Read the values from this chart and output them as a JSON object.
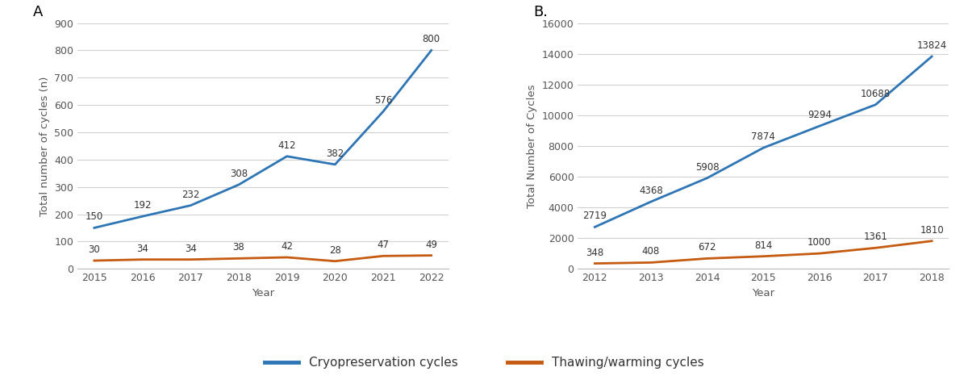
{
  "A": {
    "years": [
      2015,
      2016,
      2017,
      2018,
      2019,
      2020,
      2021,
      2022
    ],
    "cryo": [
      150,
      192,
      232,
      308,
      412,
      382,
      576,
      800
    ],
    "thaw": [
      30,
      34,
      34,
      38,
      42,
      28,
      47,
      49
    ],
    "ylabel": "Total number of cycles (n)",
    "xlabel": "Year",
    "title": "A",
    "ylim": [
      0,
      900
    ],
    "yticks": [
      0,
      100,
      200,
      300,
      400,
      500,
      600,
      700,
      800,
      900
    ]
  },
  "B": {
    "years": [
      2012,
      2013,
      2014,
      2015,
      2016,
      2017,
      2018
    ],
    "cryo": [
      2719,
      4368,
      5908,
      7874,
      9294,
      10688,
      13824
    ],
    "thaw": [
      348,
      408,
      672,
      814,
      1000,
      1361,
      1810
    ],
    "ylabel": "Total Number of Cycles",
    "xlabel": "Year",
    "title": "B.",
    "ylim": [
      0,
      16000
    ],
    "yticks": [
      0,
      2000,
      4000,
      6000,
      8000,
      10000,
      12000,
      14000,
      16000
    ]
  },
  "cryo_color": "#2E75B6",
  "thaw_color": "#C55A11",
  "line_width": 2.0,
  "label_fontsize": 8.5,
  "axis_fontsize": 9.5,
  "tick_fontsize": 9,
  "title_fontsize": 13,
  "legend_label_cryo": "Cryopreservation cycles",
  "legend_label_thaw": "Thawing/warming cycles",
  "bg_color": "#ffffff",
  "grid_color": "#d0d0d0"
}
